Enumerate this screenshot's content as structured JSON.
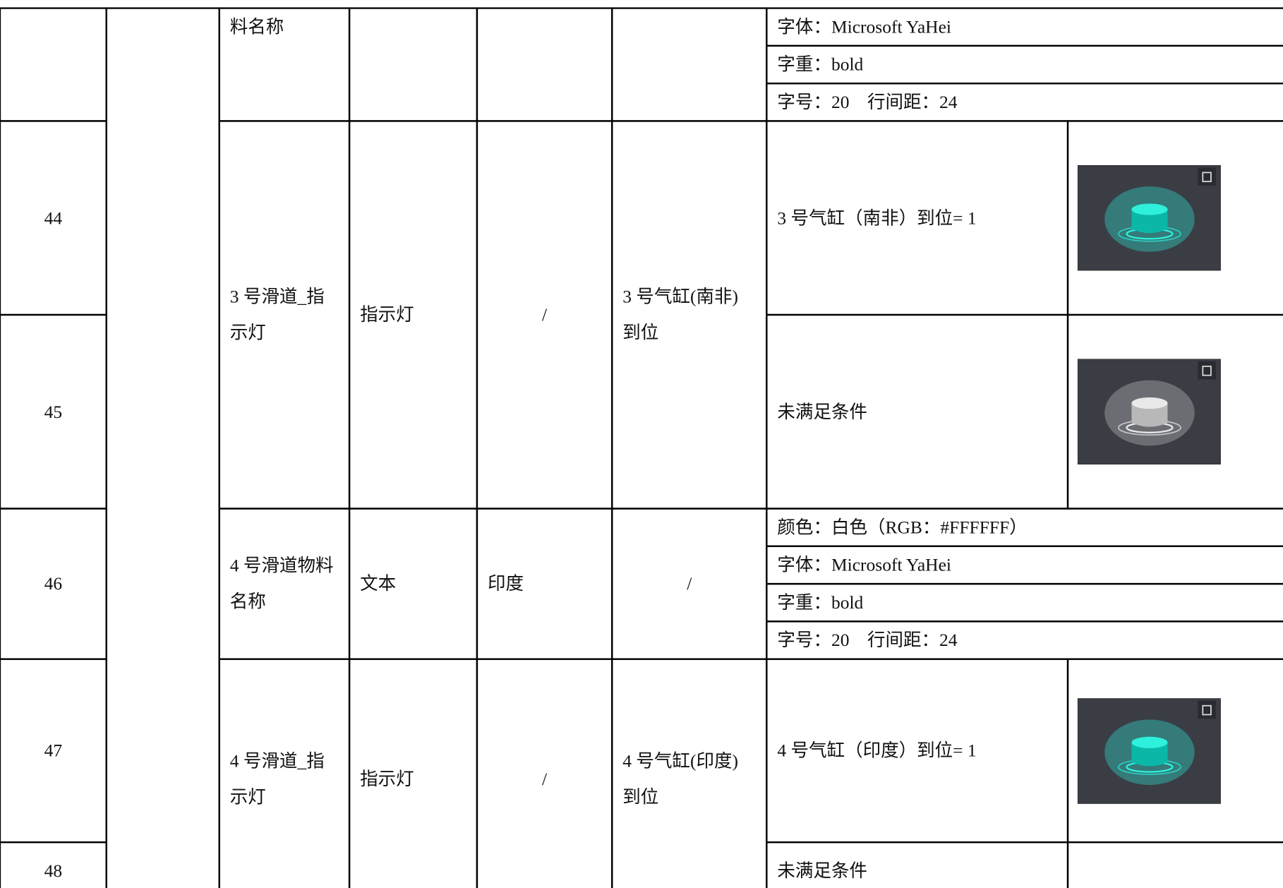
{
  "table": {
    "rows": [
      {
        "no": null,
        "name": "料名称",
        "type": null,
        "region": null,
        "condition": null,
        "props": [
          "字体：Microsoft YaHei",
          "字重：bold",
          "字号：20　行间距：24"
        ]
      },
      {
        "name": "3 号滑道_指示灯",
        "type": "指示灯",
        "region": "/",
        "condition": "3 号气缸(南非)到位",
        "states": [
          {
            "no": "44",
            "text": "3 号气缸（南非）到位= 1"
          },
          {
            "no": "45",
            "text": "未满足条件"
          }
        ]
      },
      {
        "no": "46",
        "name": "4 号滑道物料名称",
        "type": "文本",
        "region": "印度",
        "condition": "/",
        "props": [
          "颜色：白色（RGB：#FFFFFF）",
          "字体：Microsoft YaHei",
          "字重：bold",
          "字号：20　行间距：24"
        ]
      },
      {
        "name": "4 号滑道_指示灯",
        "type": "指示灯",
        "region": "/",
        "condition": "4 号气缸(印度)到位",
        "states": [
          {
            "no": "47",
            "text": "4 号气缸（印度）到位= 1"
          },
          {
            "no": "48",
            "text": "未满足条件"
          }
        ]
      }
    ]
  }
}
